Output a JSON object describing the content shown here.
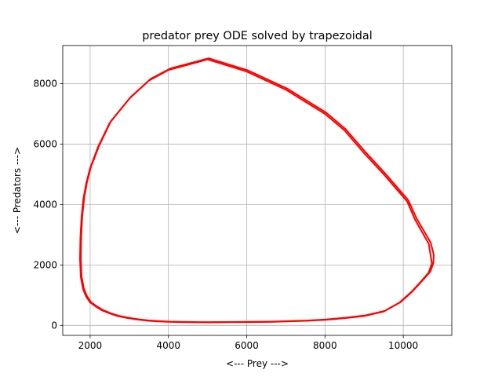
{
  "chart_data": {
    "type": "line",
    "title": "predator prey ODE solved by trapezoidal",
    "xlabel": "<--- Prey --->",
    "ylabel": "<--- Predators --->",
    "xlim": [
      1300,
      11240
    ],
    "ylim": [
      -330,
      9260
    ],
    "grid": true,
    "xticks": [
      2000,
      4000,
      6000,
      8000,
      10000
    ],
    "yticks": [
      0,
      2000,
      4000,
      6000,
      8000
    ],
    "xtick_labels": [
      "2000",
      "4000",
      "6000",
      "8000",
      "10000"
    ],
    "ytick_labels": [
      "0",
      "2000",
      "4000",
      "6000",
      "8000"
    ],
    "colors": {
      "line": "#ff0000",
      "grid": "#b0b0b0",
      "axis": "#000000"
    },
    "series": [
      {
        "x": [
          10700,
          10730,
          10650,
          10450,
          10200,
          9900,
          9500,
          9000,
          8500,
          8000,
          7500,
          7000,
          6600,
          6000,
          5500,
          5000,
          4700,
          4300,
          4000,
          3700,
          3450,
          3200,
          2950,
          2700,
          2500,
          2300,
          2150,
          2000,
          1900,
          1820,
          1760,
          1740,
          1750,
          1780,
          1830,
          1900,
          2000,
          2200,
          2500,
          3000,
          3500,
          4000,
          5000,
          6000,
          7000,
          8000,
          8500,
          9000,
          9500,
          10100,
          10300,
          10650,
          10700
        ],
        "y": [
          2300,
          2050,
          1750,
          1450,
          1100,
          750,
          460,
          310,
          240,
          185,
          150,
          130,
          115,
          108,
          103,
          100,
          102,
          108,
          118,
          135,
          158,
          195,
          245,
          310,
          395,
          500,
          620,
          760,
          950,
          1200,
          1600,
          2200,
          2900,
          3600,
          4200,
          4700,
          5200,
          5900,
          6700,
          7500,
          8100,
          8450,
          8800,
          8400,
          7800,
          7000,
          6450,
          5700,
          5000,
          4100,
          3500,
          2700,
          2300
        ]
      },
      {
        "x": [
          10780,
          10770,
          10690,
          10480,
          10230,
          9930,
          9530,
          9030,
          8530,
          8030,
          7530,
          7030,
          6630,
          6030,
          5530,
          5030,
          4730,
          4330,
          4030,
          3730,
          3480,
          3230,
          2970,
          2720,
          2520,
          2320,
          2170,
          2020,
          1920,
          1840,
          1780,
          1760,
          1770,
          1800,
          1850,
          1920,
          2020,
          2230,
          2530,
          3040,
          3550,
          4050,
          5030,
          6030,
          7030,
          8030,
          8530,
          9030,
          9530,
          10130,
          10340,
          10700,
          10780
        ],
        "y": [
          2330,
          2070,
          1780,
          1470,
          1120,
          770,
          480,
          330,
          255,
          198,
          160,
          140,
          124,
          116,
          111,
          108,
          110,
          116,
          126,
          143,
          166,
          204,
          254,
          320,
          405,
          512,
          632,
          774,
          966,
          1220,
          1620,
          2220,
          2920,
          3620,
          4230,
          4740,
          5240,
          5950,
          6760,
          7560,
          8160,
          8500,
          8840,
          8440,
          7840,
          7040,
          6490,
          5740,
          5040,
          4140,
          3540,
          2740,
          2330
        ]
      }
    ]
  }
}
